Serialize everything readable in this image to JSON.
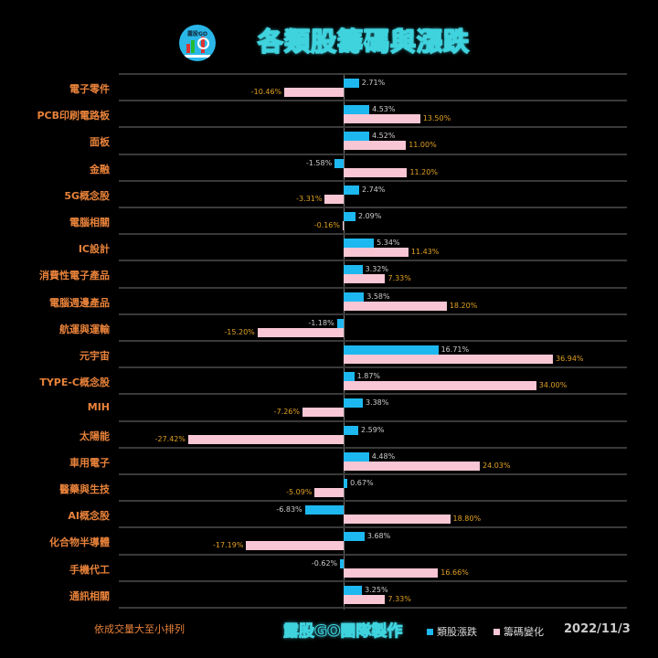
{
  "header": {
    "title": "各類股籌碼與漲跌",
    "logo_text": "露股GO"
  },
  "footer": {
    "sort_note": "依成交量大至小排列",
    "maker": "露股GO團隊製作",
    "legend_1": "類股漲跌",
    "legend_2": "籌碼變化",
    "date": "2022/11/3"
  },
  "colors": {
    "background": "#000000",
    "sector_change": "#1eb8f0",
    "chip_change": "#f8c6d4",
    "category_label": "#e8823a",
    "chip_label": "#e0a020"
  },
  "chart_data": {
    "type": "bar",
    "orientation": "horizontal",
    "title": "各類股籌碼與漲跌",
    "categories": [
      "電子零件",
      "PCB印刷電路板",
      "面板",
      "金融",
      "5G概念股",
      "電腦相關",
      "IC設計",
      "消費性電子產品",
      "電腦週邊產品",
      "航運與運輸",
      "元宇宙",
      "TYPE-C概念股",
      "MIH",
      "太陽能",
      "車用電子",
      "醫藥與生技",
      "AI概念股",
      "化合物半導體",
      "手機代工",
      "通訊相關"
    ],
    "series": [
      {
        "name": "類股漲跌",
        "color": "#1eb8f0",
        "values": [
          2.71,
          4.53,
          4.52,
          -1.58,
          2.74,
          2.09,
          5.34,
          3.32,
          3.58,
          -1.18,
          16.71,
          1.87,
          3.38,
          2.59,
          4.48,
          0.67,
          -6.83,
          3.68,
          -0.62,
          3.25
        ]
      },
      {
        "name": "籌碼變化",
        "color": "#f8c6d4",
        "values": [
          -10.46,
          13.5,
          11.0,
          11.2,
          -3.31,
          -0.16,
          11.43,
          7.33,
          18.2,
          -15.2,
          36.94,
          34.0,
          -7.26,
          -27.42,
          24.03,
          -5.09,
          18.8,
          -17.19,
          16.66,
          7.33
        ]
      }
    ],
    "labels_1": [
      "2.71%",
      "4.53%",
      "4.52%",
      "-1.58%",
      "2.74%",
      "2.09%",
      "5.34%",
      "3.32%",
      "3.58%",
      "-1.18%",
      "16.71%",
      "1.87%",
      "3.38%",
      "2.59%",
      "4.48%",
      "0.67%",
      "-6.83%",
      "3.68%",
      "-0.62%",
      "3.25%"
    ],
    "labels_2": [
      "-10.46%",
      "13.50%",
      "11.00%",
      "11.20%",
      "-3.31%",
      "-0.16%",
      "11.43%",
      "7.33%",
      "18.20%",
      "-15.20%",
      "36.94%",
      "34.00%",
      "-7.26%",
      "-27.42%",
      "24.03%",
      "-5.09%",
      "18.80%",
      "-17.19%",
      "16.66%",
      "7.33%"
    ],
    "xlabel": "",
    "ylabel": "",
    "grid": true,
    "legend_position": "bottom",
    "unit": "%"
  }
}
